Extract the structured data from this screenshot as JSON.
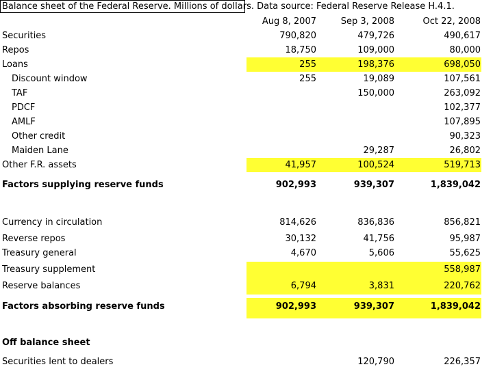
{
  "title": "Balance sheet of the Federal Reserve. Millions of dollars. Data source: Federal Reserve Release H.4.1.",
  "columns": [
    "Aug 8, 2007",
    "Sep 3, 2008",
    "Oct 22, 2008"
  ],
  "highlight_color": "#ffff33",
  "rows": [
    {
      "label": "Securities",
      "values": [
        "790,820",
        "479,726",
        "490,617"
      ]
    },
    {
      "label": "Repos",
      "values": [
        "18,750",
        "109,000",
        "80,000"
      ]
    },
    {
      "label": "Loans",
      "values": [
        "255",
        "198,376",
        "698,050"
      ]
    },
    {
      "label": "Discount window",
      "values": [
        "255",
        "19,089",
        "107,561"
      ]
    },
    {
      "label": "TAF",
      "values": [
        "",
        "150,000",
        "263,092"
      ]
    },
    {
      "label": "PDCF",
      "values": [
        "",
        "",
        "102,377"
      ]
    },
    {
      "label": "AMLF",
      "values": [
        "",
        "",
        "107,895"
      ]
    },
    {
      "label": "Other credit",
      "values": [
        "",
        "",
        "90,323"
      ]
    },
    {
      "label": "Maiden Lane",
      "values": [
        "",
        "29,287",
        "26,802"
      ]
    },
    {
      "label": "Other F.R. assets",
      "values": [
        "41,957",
        "100,524",
        "519,713"
      ]
    },
    {
      "label": "Factors supplying reserve funds",
      "values": [
        "902,993",
        "939,307",
        "1,839,042"
      ]
    },
    {
      "label": "Currency in circulation",
      "values": [
        "814,626",
        "836,836",
        "856,821"
      ]
    },
    {
      "label": "Reverse repos",
      "values": [
        "30,132",
        "41,756",
        "95,987"
      ]
    },
    {
      "label": "Treasury general",
      "values": [
        "4,670",
        "5,606",
        "55,625"
      ]
    },
    {
      "label": "Treasury supplement",
      "values": [
        "",
        "",
        "558,987"
      ]
    },
    {
      "label": "Reserve balances",
      "values": [
        "6,794",
        "3,831",
        "220,762"
      ]
    },
    {
      "label": "Factors absorbing reserve funds",
      "values": [
        "902,993",
        "939,307",
        "1,839,042"
      ]
    },
    {
      "label": "Off balance sheet",
      "values": [
        "",
        "",
        ""
      ]
    },
    {
      "label": "Securities lent to dealers",
      "values": [
        "",
        "120,790",
        "226,357"
      ]
    }
  ]
}
